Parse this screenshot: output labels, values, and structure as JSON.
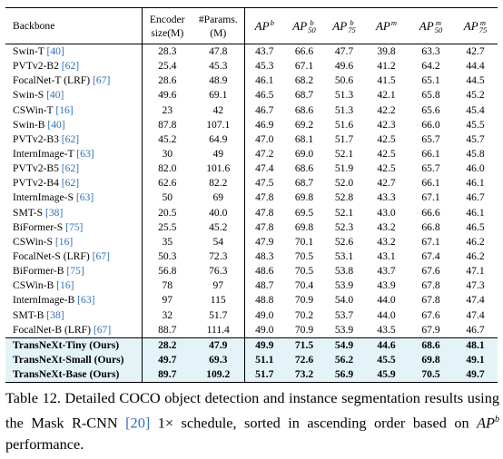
{
  "table": {
    "headers": {
      "backbone": "Backbone",
      "encoder_line1": "Encoder",
      "encoder_line2": "size(M)",
      "params_line1": "#Params.",
      "params_line2": "(M)",
      "ap_b": {
        "base": "AP",
        "sup": "b",
        "sub": ""
      },
      "ap_b50": {
        "base": "AP",
        "sup": "b",
        "sub": "50"
      },
      "ap_b75": {
        "base": "AP",
        "sup": "b",
        "sub": "75"
      },
      "ap_m": {
        "base": "AP",
        "sup": "m",
        "sub": ""
      },
      "ap_m50": {
        "base": "AP",
        "sup": "m",
        "sub": "50"
      },
      "ap_m75": {
        "base": "AP",
        "sup": "m",
        "sub": "75"
      }
    },
    "rows": [
      {
        "name": "Swin-T",
        "ref": "[40]",
        "values": [
          "28.3",
          "47.8",
          "43.7",
          "66.6",
          "47.7",
          "39.8",
          "63.3",
          "42.7"
        ]
      },
      {
        "name": "PVTv2-B2",
        "ref": "[62]",
        "values": [
          "25.4",
          "45.3",
          "45.3",
          "67.1",
          "49.6",
          "41.2",
          "64.2",
          "44.4"
        ]
      },
      {
        "name": "FocalNet-T (LRF)",
        "ref": "[67]",
        "values": [
          "28.6",
          "48.9",
          "46.1",
          "68.2",
          "50.6",
          "41.5",
          "65.1",
          "44.5"
        ]
      },
      {
        "name": "Swin-S",
        "ref": "[40]",
        "values": [
          "49.6",
          "69.1",
          "46.5",
          "68.7",
          "51.3",
          "42.1",
          "65.8",
          "45.2"
        ]
      },
      {
        "name": "CSWin-T",
        "ref": "[16]",
        "values": [
          "23",
          "42",
          "46.7",
          "68.6",
          "51.3",
          "42.2",
          "65.6",
          "45.4"
        ]
      },
      {
        "name": "Swin-B",
        "ref": "[40]",
        "values": [
          "87.8",
          "107.1",
          "46.9",
          "69.2",
          "51.6",
          "42.3",
          "66.0",
          "45.5"
        ]
      },
      {
        "name": "PVTv2-B3",
        "ref": "[62]",
        "values": [
          "45.2",
          "64.9",
          "47.0",
          "68.1",
          "51.7",
          "42.5",
          "65.7",
          "45.7"
        ]
      },
      {
        "name": "InternImage-T",
        "ref": "[63]",
        "values": [
          "30",
          "49",
          "47.2",
          "69.0",
          "52.1",
          "42.5",
          "66.1",
          "45.8"
        ]
      },
      {
        "name": "PVTv2-B5",
        "ref": "[62]",
        "values": [
          "82.0",
          "101.6",
          "47.4",
          "68.6",
          "51.9",
          "42.5",
          "65.7",
          "46.0"
        ]
      },
      {
        "name": "PVTv2-B4",
        "ref": "[62]",
        "values": [
          "62.6",
          "82.2",
          "47.5",
          "68.7",
          "52.0",
          "42.7",
          "66.1",
          "46.1"
        ]
      },
      {
        "name": "InternImage-S",
        "ref": "[63]",
        "values": [
          "50",
          "69",
          "47.8",
          "69.8",
          "52.8",
          "43.3",
          "67.1",
          "46.7"
        ]
      },
      {
        "name": "SMT-S",
        "ref": "[38]",
        "values": [
          "20.5",
          "40.0",
          "47.8",
          "69.5",
          "52.1",
          "43.0",
          "66.6",
          "46.1"
        ]
      },
      {
        "name": "BiFormer-S",
        "ref": "[75]",
        "values": [
          "25.5",
          "45.2",
          "47.8",
          "69.8",
          "52.3",
          "43.2",
          "66.8",
          "46.5"
        ]
      },
      {
        "name": "CSWin-S",
        "ref": "[16]",
        "values": [
          "35",
          "54",
          "47.9",
          "70.1",
          "52.6",
          "43.2",
          "67.1",
          "46.2"
        ]
      },
      {
        "name": "FocalNet-S (LRF)",
        "ref": "[67]",
        "values": [
          "50.3",
          "72.3",
          "48.3",
          "70.5",
          "53.1",
          "43.1",
          "67.4",
          "46.2"
        ]
      },
      {
        "name": "BiFormer-B",
        "ref": "[75]",
        "values": [
          "56.8",
          "76.3",
          "48.6",
          "70.5",
          "53.8",
          "43.7",
          "67.6",
          "47.1"
        ]
      },
      {
        "name": "CSWin-B",
        "ref": "[16]",
        "values": [
          "78",
          "97",
          "48.7",
          "70.4",
          "53.9",
          "43.9",
          "67.8",
          "47.3"
        ]
      },
      {
        "name": "InternImage-B",
        "ref": "[63]",
        "values": [
          "97",
          "115",
          "48.8",
          "70.9",
          "54.0",
          "44.0",
          "67.8",
          "47.4"
        ]
      },
      {
        "name": "SMT-B",
        "ref": "[38]",
        "values": [
          "32",
          "51.7",
          "49.0",
          "70.2",
          "53.7",
          "44.0",
          "67.6",
          "47.4"
        ]
      },
      {
        "name": "FocalNet-B (LRF)",
        "ref": "[67]",
        "values": [
          "88.7",
          "111.4",
          "49.0",
          "70.9",
          "53.9",
          "43.5",
          "67.9",
          "46.7"
        ]
      }
    ],
    "ours_rows": [
      {
        "name": "TransNeXt-Tiny (Ours)",
        "values": [
          "28.2",
          "47.9",
          "49.9",
          "71.5",
          "54.9",
          "44.6",
          "68.6",
          "48.1"
        ]
      },
      {
        "name": "TransNeXt-Small (Ours)",
        "values": [
          "49.7",
          "69.3",
          "51.1",
          "72.6",
          "56.2",
          "45.5",
          "69.8",
          "49.1"
        ]
      },
      {
        "name": "TransNeXt-Base (Ours)",
        "values": [
          "89.7",
          "109.2",
          "51.7",
          "73.2",
          "56.9",
          "45.9",
          "70.5",
          "49.7"
        ]
      }
    ]
  },
  "caption": {
    "part1": "Table 12. Detailed COCO object detection and instance segmentation results using the Mask R-CNN ",
    "ref": "[20]",
    "part2": " 1× schedule, sorted in ascending order based on ",
    "ap": "AP",
    "ap_sup": "b",
    "part3": " performance."
  },
  "colors": {
    "reference": "#2f6fb5",
    "ours_highlight": "#e3f3f7"
  }
}
